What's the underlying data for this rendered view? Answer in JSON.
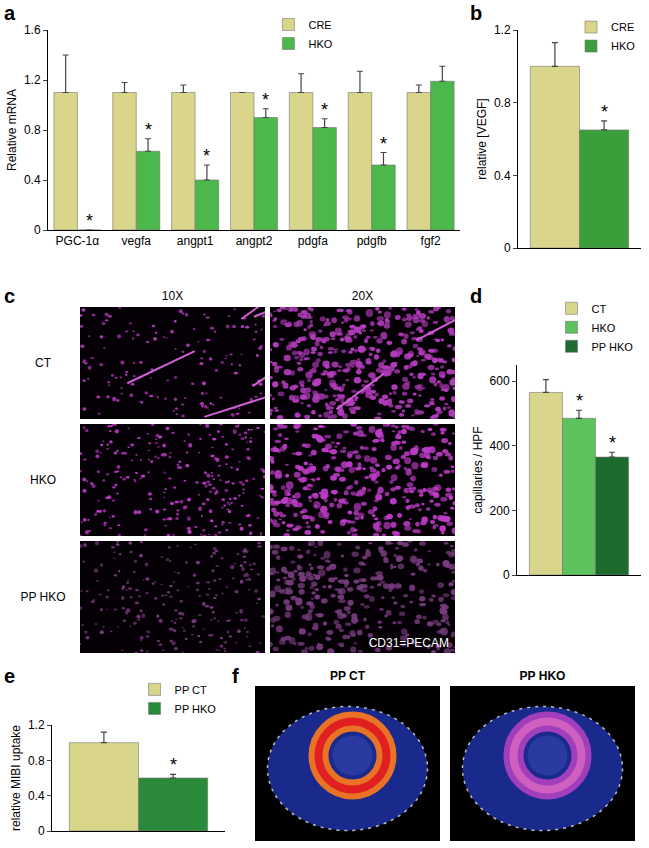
{
  "chart_data": [
    {
      "panel": "a",
      "type": "bar",
      "y_label": "Relative mRNA",
      "categories": [
        "PGC-1α",
        "vegfa",
        "angpt1",
        "angpt2",
        "pdgfa",
        "pdgfb",
        "fgf2"
      ],
      "series": [
        {
          "name": "CRE",
          "color": "#d9d58a",
          "values": [
            1.1,
            1.1,
            1.1,
            1.1,
            1.1,
            1.1,
            1.1
          ],
          "errors": [
            0.3,
            0.08,
            0.06,
            0,
            0.15,
            0.17,
            0.06
          ],
          "marks": [
            null,
            null,
            null,
            null,
            null,
            null,
            null
          ]
        },
        {
          "name": "HKO",
          "color": "#4cb84c",
          "values": [
            0,
            0.63,
            0.4,
            0.9,
            0.82,
            0.52,
            1.19
          ],
          "errors": [
            0,
            0.1,
            0.12,
            0.07,
            0.07,
            0.1,
            0.12
          ],
          "marks": [
            "*",
            "*",
            "*",
            "*",
            "*",
            "*",
            null
          ]
        }
      ],
      "ylim": [
        0,
        1.6
      ],
      "yticks": [
        0,
        0.4,
        0.8,
        1.2,
        1.6
      ],
      "legend": "top"
    },
    {
      "panel": "b",
      "type": "bar",
      "y_label": "relative [VEGF]",
      "categories": [
        null
      ],
      "series": [
        {
          "name": "CRE",
          "color": "#d9d58a",
          "values": [
            1.0
          ],
          "errors": [
            0.13
          ],
          "marks": [
            null
          ]
        },
        {
          "name": "HKO",
          "color": "#3a9f3a",
          "values": [
            0.65
          ],
          "errors": [
            0.05
          ],
          "marks": [
            "*"
          ]
        }
      ],
      "ylim": [
        0,
        1.2
      ],
      "yticks": [
        0,
        0.4,
        0.8,
        1.2
      ],
      "legend": "top right",
      "tick_labels": "y"
    },
    {
      "panel": "d",
      "type": "bar",
      "y_label": "capillaries / HPF",
      "categories": [
        null
      ],
      "series": [
        {
          "name": "CT",
          "color": "#d9d58a",
          "values": [
            565
          ],
          "errors": [
            40
          ],
          "marks": [
            null
          ]
        },
        {
          "name": "HKO",
          "color": "#5cc35c",
          "values": [
            485
          ],
          "errors": [
            25
          ],
          "marks": [
            "*"
          ]
        },
        {
          "name": "PP HKO",
          "color": "#1e6b2e",
          "values": [
            365
          ],
          "errors": [
            15
          ],
          "marks": [
            "*"
          ]
        }
      ],
      "ylim": [
        0,
        650
      ],
      "yticks": [
        0,
        200,
        400,
        600
      ],
      "legend": "top right",
      "tick_labels": "y"
    },
    {
      "panel": "e",
      "type": "bar",
      "y_label": "relative MIBI uptake",
      "categories": [
        null
      ],
      "series": [
        {
          "name": "PP CT",
          "color": "#d9d58a",
          "values": [
            1.0
          ],
          "errors": [
            0.12
          ],
          "marks": [
            null
          ]
        },
        {
          "name": "PP HKO",
          "color": "#2a8a3a",
          "values": [
            0.6
          ],
          "errors": [
            0.04
          ],
          "marks": [
            "*"
          ]
        }
      ],
      "ylim": [
        0,
        1.2
      ],
      "yticks": [
        0,
        0.4,
        0.8,
        1.2
      ],
      "legend": "top right",
      "tick_labels": "y"
    }
  ],
  "images": [
    {
      "panel": "c",
      "columns": [
        "10X",
        "20X"
      ],
      "rows": [
        "CT",
        "HKO",
        "PP HKO"
      ],
      "caption": "CD31=PECAM"
    },
    {
      "panel": "f",
      "titles": [
        "PP CT",
        "PP HKO"
      ]
    }
  ]
}
